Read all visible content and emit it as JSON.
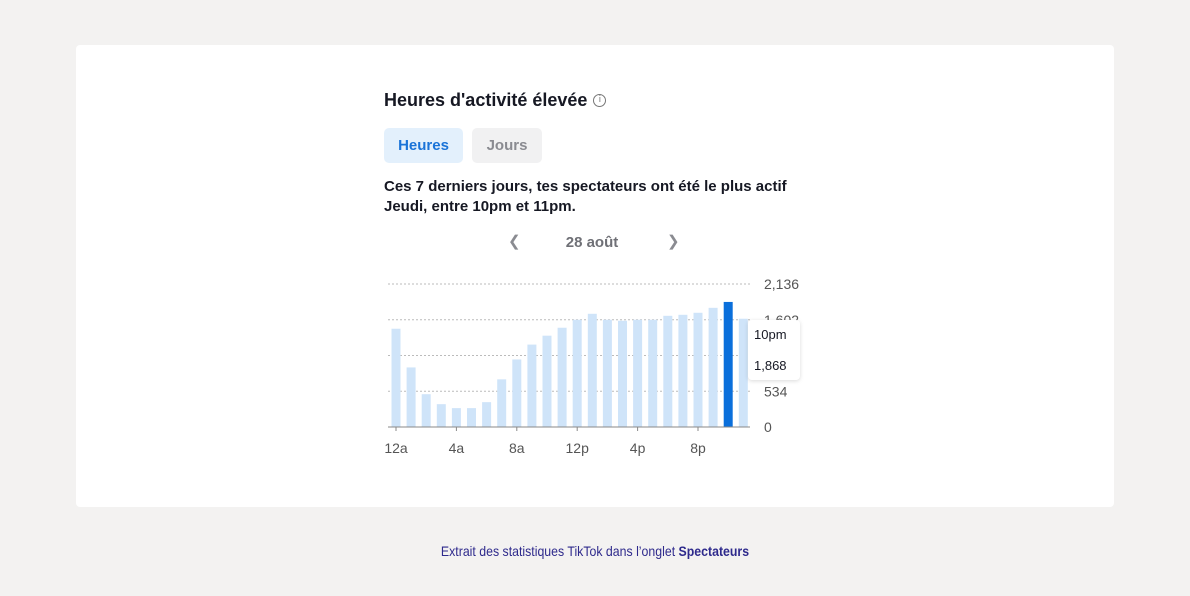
{
  "title": "Heures d'activité élevée",
  "info_icon": "info-icon",
  "tabs": [
    {
      "label": "Heures",
      "active": true
    },
    {
      "label": "Jours",
      "active": false
    }
  ],
  "description": "Ces 7 derniers jours, tes spectateurs ont été le plus actif Jeudi, entre 10pm et 11pm.",
  "date_nav": {
    "date": "28 août",
    "prev_icon": "chevron-left-icon",
    "next_icon": "chevron-right-icon"
  },
  "tooltip": {
    "label": "10pm",
    "value": "1,868"
  },
  "caption": {
    "text": "Extrait des statistiques TikTok dans l’onglet ",
    "bold": "Spectateurs"
  },
  "colors": {
    "bar": "#cfe4f9",
    "highlight": "#0a6fdb",
    "accent": "#1a73d8",
    "caption": "#2e2a8c"
  },
  "chart_data": {
    "type": "bar",
    "categories": [
      "12a",
      "1a",
      "2a",
      "3a",
      "4a",
      "5a",
      "6a",
      "7a",
      "8a",
      "9a",
      "10a",
      "11a",
      "12p",
      "1p",
      "2p",
      "3p",
      "4p",
      "5p",
      "6p",
      "7p",
      "8p",
      "9p",
      "10p",
      "11p"
    ],
    "values": [
      1468,
      890,
      490,
      341,
      282,
      282,
      371,
      712,
      1009,
      1231,
      1364,
      1483,
      1602,
      1691,
      1602,
      1587,
      1602,
      1602,
      1661,
      1676,
      1706,
      1780,
      1868,
      1617
    ],
    "highlight_index": 22,
    "x_tick_labels": [
      "12a",
      "4a",
      "8a",
      "12p",
      "4p",
      "8p"
    ],
    "x_tick_indices": [
      0,
      4,
      8,
      12,
      16,
      20
    ],
    "y_ticks": [
      0,
      534,
      1068,
      1602,
      2136
    ],
    "y_tick_labels": [
      "0",
      "534",
      "1,068",
      "1,602",
      "2,136"
    ],
    "ylim": [
      0,
      2136
    ],
    "grid": true
  }
}
